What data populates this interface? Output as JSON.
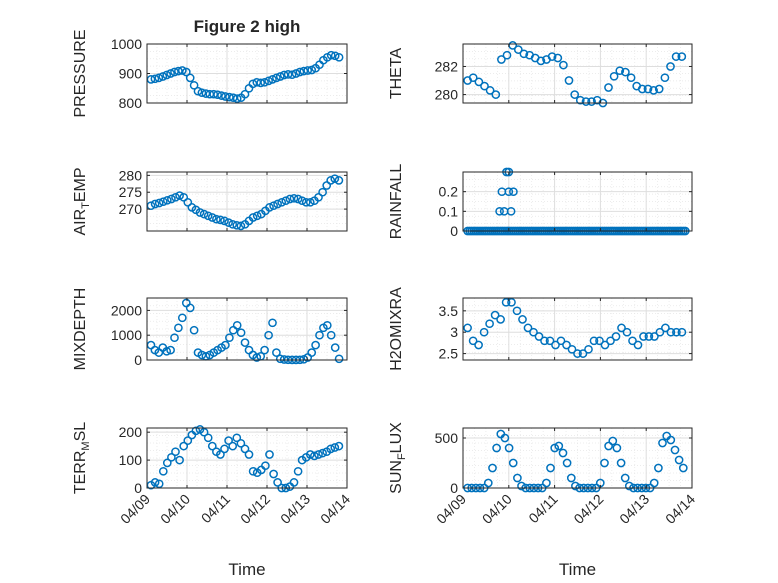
{
  "chart_data": [
    {
      "type": "scatter",
      "title": "Figure 2 high",
      "ylabel": "PRESSURE",
      "ylim": [
        800,
        1000
      ],
      "yticks": [
        800,
        900,
        1000
      ],
      "ytick_labels": [
        "800",
        "900",
        "1000"
      ],
      "xlim": [
        0,
        5
      ],
      "x_step": 0.05,
      "values": [
        880,
        882,
        885,
        890,
        895,
        900,
        905,
        908,
        910,
        905,
        885,
        860,
        840,
        835,
        832,
        830,
        830,
        828,
        825,
        822,
        820,
        818,
        815,
        818,
        830,
        850,
        865,
        870,
        868,
        870,
        875,
        880,
        885,
        890,
        895,
        897,
        896,
        900,
        905,
        908,
        910,
        912,
        918,
        930,
        945,
        955,
        962,
        960,
        955
      ]
    },
    {
      "type": "scatter",
      "title": "",
      "ylabel": "THETA",
      "ylim": [
        279.4,
        283.6
      ],
      "yticks": [
        280,
        282
      ],
      "ytick_labels": [
        "280",
        "282"
      ],
      "xlim": [
        0,
        5
      ],
      "x_step": 0.05,
      "values": [
        281.0,
        281.2,
        280.9,
        280.6,
        280.3,
        280.0,
        282.5,
        282.8,
        283.5,
        283.2,
        282.9,
        282.8,
        282.6,
        282.4,
        282.5,
        282.7,
        282.6,
        282.1,
        281.0,
        280.0,
        279.6,
        279.5,
        279.5,
        279.6,
        279.4,
        280.5,
        281.3,
        281.7,
        281.6,
        281.2,
        280.6,
        280.4,
        280.4,
        280.3,
        280.4,
        281.2,
        282.0,
        282.7,
        282.7
      ]
    },
    {
      "type": "scatter",
      "title": "",
      "ylabel": "AIR",
      "ylabel_sub": "T",
      "ylabel_suffix": "EMP",
      "ylim": [
        263.5,
        281
      ],
      "yticks": [
        270,
        275,
        280
      ],
      "ytick_labels": [
        "270",
        "275",
        "280"
      ],
      "xlim": [
        0,
        5
      ],
      "x_step": 0.05,
      "values": [
        271.0,
        271.5,
        271.8,
        272.2,
        272.6,
        273.0,
        273.5,
        274.0,
        273.5,
        272.0,
        270.5,
        269.8,
        269.0,
        268.5,
        268.0,
        267.5,
        267.0,
        266.8,
        266.5,
        266.0,
        265.5,
        265.2,
        265.0,
        265.5,
        266.5,
        267.5,
        268.0,
        268.5,
        269.5,
        270.5,
        271.0,
        271.5,
        272.0,
        272.5,
        273.0,
        273.2,
        273.0,
        272.5,
        272.0,
        272.0,
        272.5,
        273.5,
        275.0,
        277.0,
        278.5,
        279.0,
        278.5
      ]
    },
    {
      "type": "scatter",
      "title": "",
      "ylabel": "RAINFALL",
      "ylim": [
        0,
        0.3
      ],
      "yticks": [
        0,
        0.1,
        0.2
      ],
      "ytick_labels": [
        "0",
        "0.1",
        "0.2"
      ],
      "xlim": [
        0,
        5
      ],
      "x_step": 0.05,
      "rain_events": [
        [
          0.8,
          0.1
        ],
        [
          0.85,
          0.2
        ],
        [
          0.9,
          0.1
        ],
        [
          0.95,
          0.3
        ],
        [
          1.0,
          0.3
        ],
        [
          1.0,
          0.2
        ],
        [
          1.05,
          0.1
        ],
        [
          1.1,
          0.2
        ]
      ],
      "values": [
        0,
        0,
        0,
        0,
        0,
        0,
        0,
        0,
        0,
        0,
        0,
        0,
        0,
        0,
        0,
        0,
        0,
        0,
        0,
        0,
        0,
        0,
        0,
        0,
        0,
        0,
        0,
        0,
        0,
        0,
        0,
        0,
        0,
        0,
        0,
        0,
        0,
        0,
        0,
        0,
        0,
        0,
        0,
        0,
        0,
        0,
        0,
        0,
        0,
        0,
        0,
        0,
        0,
        0,
        0,
        0,
        0,
        0,
        0,
        0,
        0,
        0,
        0,
        0,
        0,
        0,
        0,
        0,
        0,
        0,
        0,
        0,
        0,
        0,
        0,
        0,
        0,
        0,
        0,
        0,
        0,
        0,
        0,
        0,
        0,
        0,
        0,
        0,
        0,
        0,
        0,
        0,
        0,
        0,
        0,
        0,
        0,
        0,
        0,
        0,
        0,
        0,
        0,
        0,
        0,
        0
      ]
    },
    {
      "type": "scatter",
      "title": "",
      "ylabel": "MIXDEPTH",
      "ylim": [
        0,
        2500
      ],
      "yticks": [
        0,
        1000,
        2000
      ],
      "ytick_labels": [
        "0",
        "1000",
        "2000"
      ],
      "xlim": [
        0,
        5
      ],
      "x_step": 0.05,
      "values": [
        600,
        400,
        300,
        500,
        350,
        400,
        900,
        1300,
        1700,
        2300,
        2100,
        1200,
        300,
        200,
        150,
        200,
        300,
        400,
        500,
        600,
        900,
        1200,
        1400,
        1100,
        700,
        400,
        200,
        100,
        150,
        400,
        1000,
        1500,
        300,
        50,
        20,
        10,
        5,
        5,
        10,
        30,
        100,
        300,
        600,
        1000,
        1300,
        1400,
        1000,
        500,
        50
      ]
    },
    {
      "type": "scatter",
      "title": "",
      "ylabel": "H2OMIXRA",
      "ylim": [
        2.35,
        3.8
      ],
      "yticks": [
        2.5,
        3,
        3.5
      ],
      "ytick_labels": [
        "2.5",
        "3",
        "3.5"
      ],
      "xlim": [
        0,
        5
      ],
      "x_step": 0.05,
      "values": [
        3.1,
        2.8,
        2.7,
        3.0,
        3.2,
        3.4,
        3.3,
        3.7,
        3.7,
        3.5,
        3.3,
        3.1,
        3.0,
        2.9,
        2.8,
        2.8,
        2.7,
        2.8,
        2.7,
        2.6,
        2.5,
        2.5,
        2.6,
        2.8,
        2.8,
        2.7,
        2.8,
        2.9,
        3.1,
        3.0,
        2.8,
        2.7,
        2.9,
        2.9,
        2.9,
        3.0,
        3.1,
        3.0,
        3.0,
        3.0
      ]
    },
    {
      "type": "scatter",
      "title": "",
      "ylabel": "TERR",
      "ylabel_sub": "M",
      "ylabel_suffix": "SL",
      "ylim": [
        0,
        215
      ],
      "yticks": [
        0,
        100,
        200
      ],
      "ytick_labels": [
        "0",
        "100",
        "200"
      ],
      "xlim": [
        0,
        5
      ],
      "x_step": 0.05,
      "values": [
        10,
        20,
        15,
        60,
        90,
        110,
        130,
        100,
        150,
        170,
        190,
        205,
        210,
        200,
        180,
        150,
        130,
        120,
        140,
        170,
        150,
        180,
        160,
        140,
        120,
        60,
        55,
        65,
        80,
        120,
        50,
        20,
        0,
        0,
        5,
        20,
        60,
        100,
        110,
        120,
        115,
        120,
        125,
        130,
        140,
        145,
        150
      ]
    },
    {
      "type": "scatter",
      "title": "",
      "ylabel": "SUN",
      "ylabel_sub": "F",
      "ylabel_suffix": "LUX",
      "ylim": [
        0,
        600
      ],
      "yticks": [
        0,
        500
      ],
      "ytick_labels": [
        "0",
        "500"
      ],
      "xlim": [
        0,
        5
      ],
      "x_step": 0.05,
      "values": [
        0,
        0,
        0,
        0,
        0,
        50,
        200,
        400,
        540,
        500,
        400,
        250,
        100,
        20,
        0,
        0,
        0,
        0,
        0,
        50,
        200,
        400,
        420,
        350,
        250,
        100,
        20,
        0,
        0,
        0,
        0,
        0,
        50,
        250,
        420,
        470,
        400,
        250,
        100,
        20,
        0,
        0,
        0,
        0,
        0,
        50,
        200,
        450,
        520,
        480,
        380,
        280,
        200
      ]
    }
  ],
  "x_axis": {
    "tick_labels": [
      "04/09",
      "04/10",
      "04/11",
      "04/12",
      "04/13",
      "04/14"
    ],
    "label": "Time"
  }
}
